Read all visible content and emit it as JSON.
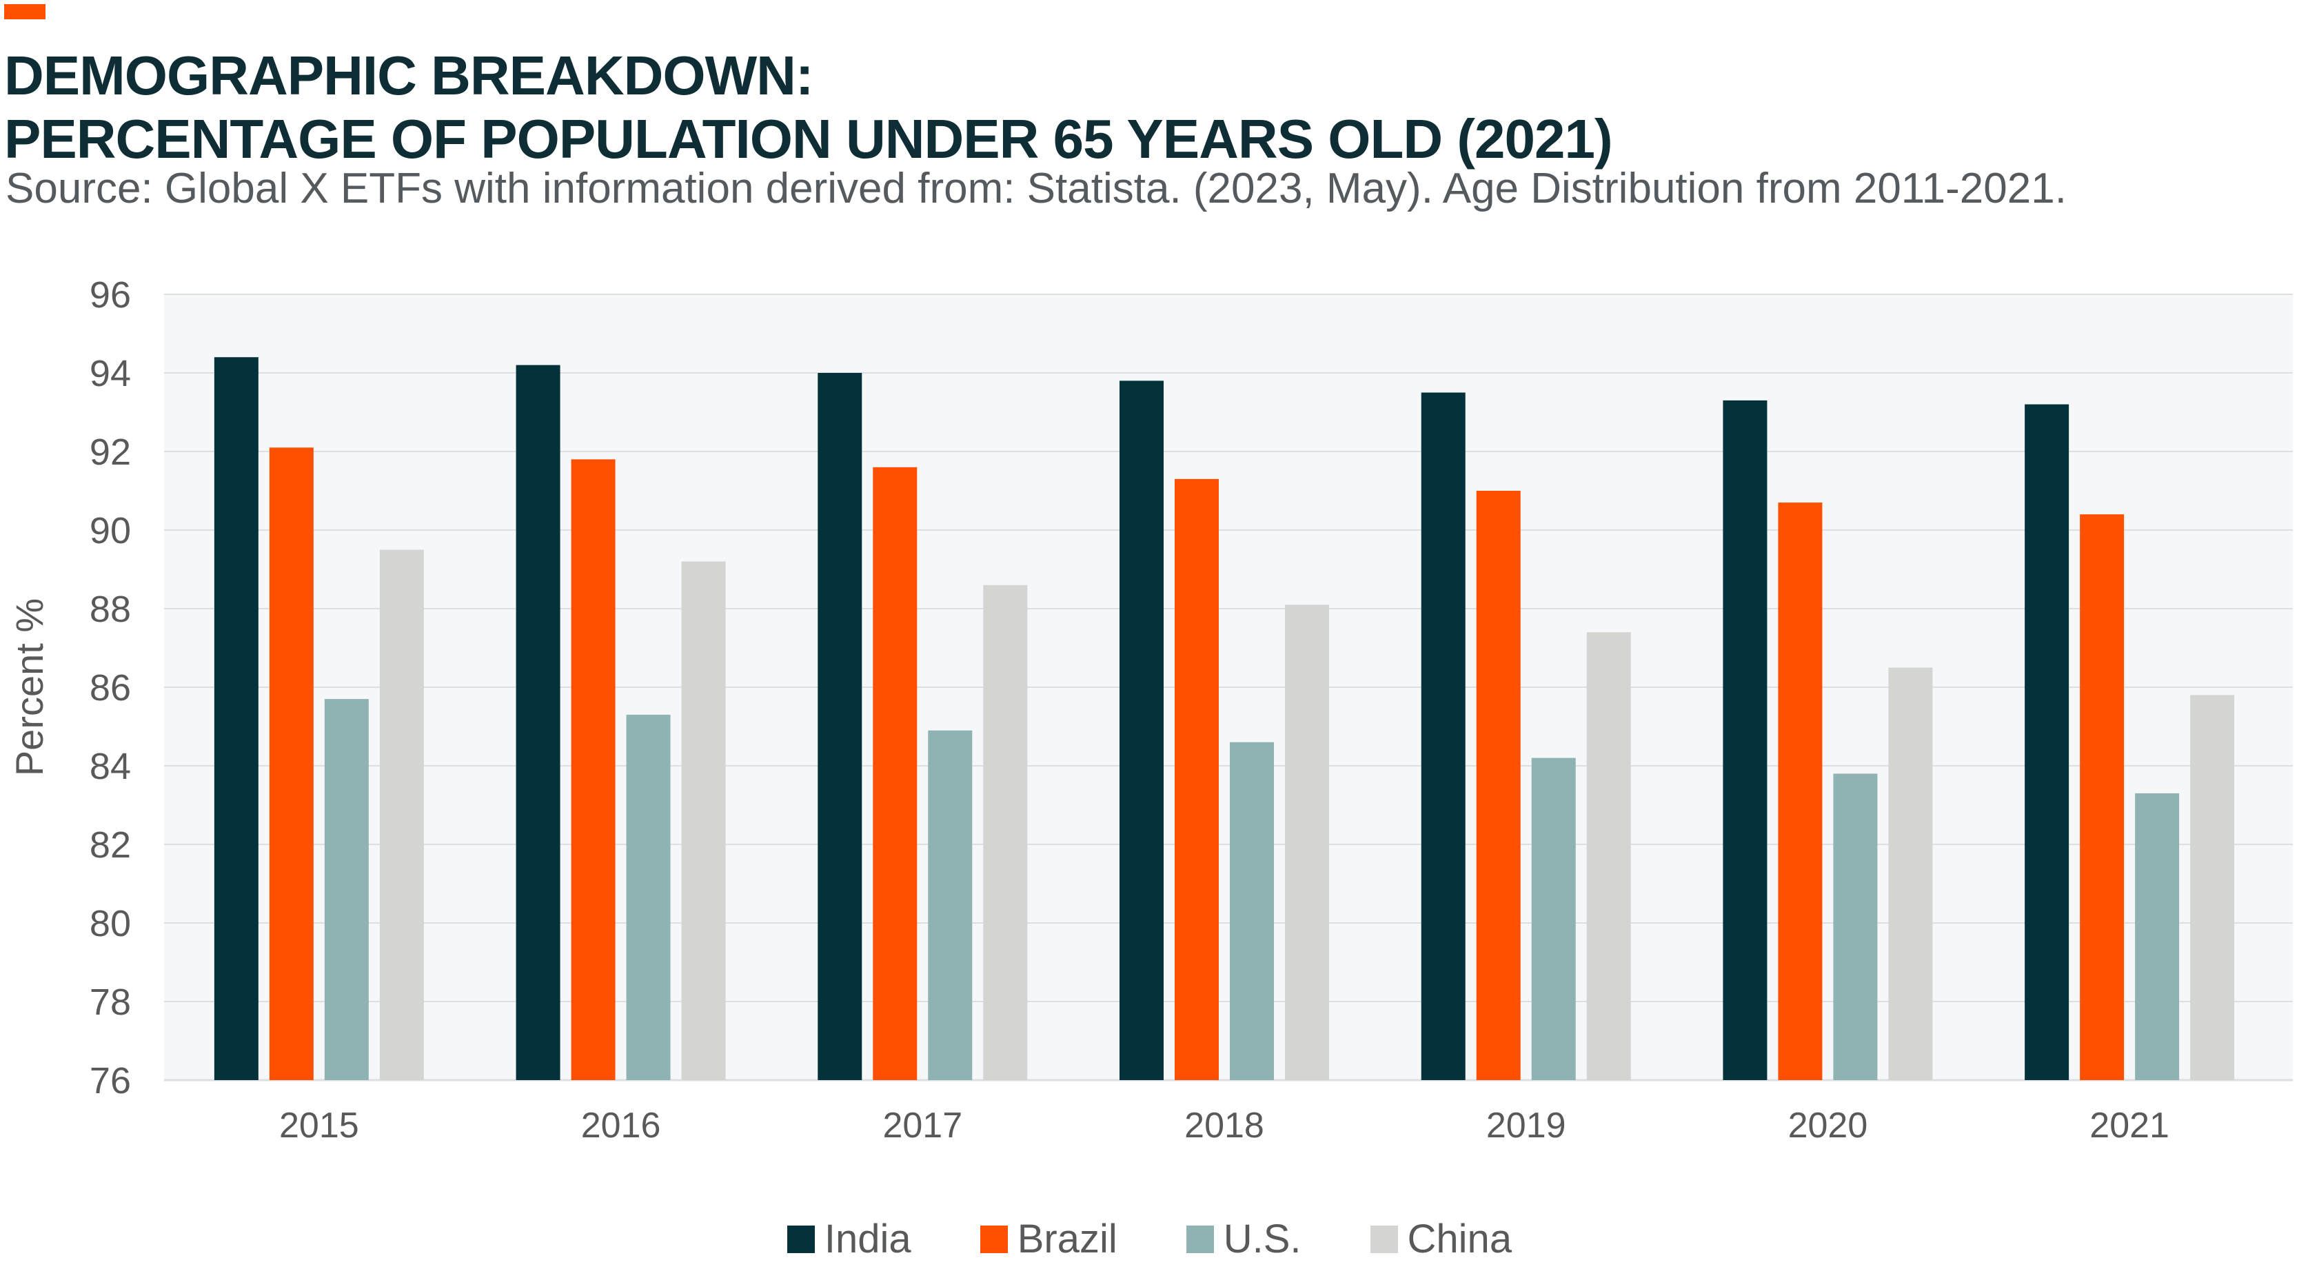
{
  "header": {
    "title_line1": "DEMOGRAPHIC BREAKDOWN:",
    "title_line2": "PERCENTAGE OF POPULATION UNDER 65 YEARS OLD (2021)",
    "source": "Source: Global X ETFs with information derived from: Statista. (2023, May). Age Distribution from 2011-2021."
  },
  "colors": {
    "accent": "#ff5000",
    "title": "#0e2d35",
    "plot_background": "#f6f7f9",
    "gridline": "#dedfe1"
  },
  "chart_data": {
    "type": "bar",
    "title": "DEMOGRAPHIC BREAKDOWN: PERCENTAGE OF POPULATION UNDER 65 YEARS OLD (2021)",
    "xlabel": "",
    "ylabel": "Percent %",
    "ylim": [
      76,
      96
    ],
    "yticks": [
      76,
      78,
      80,
      82,
      84,
      86,
      88,
      90,
      92,
      94,
      96
    ],
    "grid": true,
    "legend_position": "bottom",
    "categories": [
      "2015",
      "2016",
      "2017",
      "2018",
      "2019",
      "2020",
      "2021"
    ],
    "series": [
      {
        "name": "India",
        "color": "#04323a",
        "values": [
          94.4,
          94.2,
          94.0,
          93.8,
          93.5,
          93.3,
          93.2
        ]
      },
      {
        "name": "Brazil",
        "color": "#ff5000",
        "values": [
          92.1,
          91.8,
          91.6,
          91.3,
          91.0,
          90.7,
          90.4
        ]
      },
      {
        "name": "U.S.",
        "color": "#8fb3b3",
        "values": [
          85.7,
          85.3,
          84.9,
          84.6,
          84.2,
          83.8,
          83.3
        ]
      },
      {
        "name": "China",
        "color": "#d4d4d2",
        "values": [
          89.5,
          89.2,
          88.6,
          88.1,
          87.4,
          86.5,
          85.8
        ]
      }
    ]
  }
}
